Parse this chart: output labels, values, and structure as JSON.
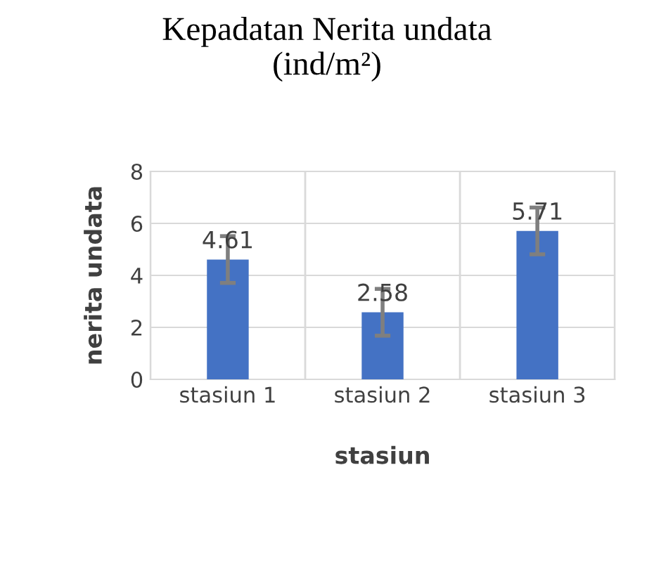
{
  "chart_data": {
    "type": "bar",
    "title": "Kepadatan Nerita undata\n(ind/m²)",
    "xlabel": "stasiun",
    "ylabel": "nerita undata",
    "categories": [
      "stasiun 1",
      "stasiun 2",
      "stasiun 3"
    ],
    "values": [
      4.61,
      2.58,
      5.71
    ],
    "errors": [
      0.9,
      0.9,
      0.9
    ],
    "color": "#4472c4",
    "ylim": [
      0,
      8
    ],
    "yticks": [
      0,
      2,
      4,
      6,
      8
    ],
    "grid": true,
    "data_labels": true
  }
}
